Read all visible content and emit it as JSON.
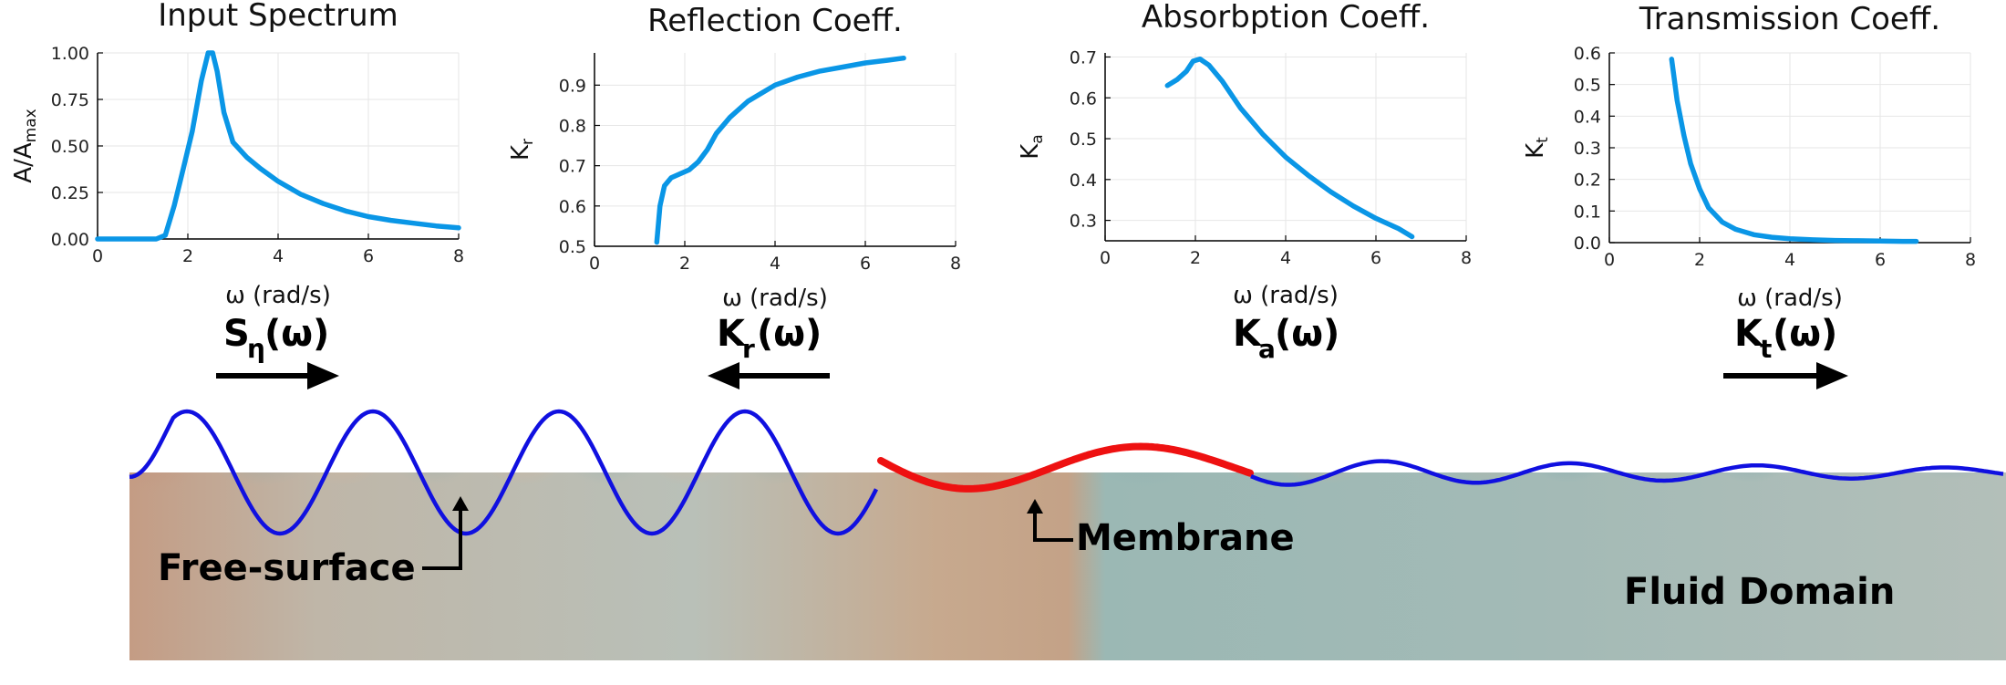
{
  "chart_data": [
    {
      "type": "line",
      "title": "Input Spectrum",
      "xlabel": "ω (rad/s)",
      "ylabel": "A/A",
      "ylabel_sub": "max",
      "xlim": [
        0,
        8
      ],
      "ylim": [
        0,
        1
      ],
      "xticks": [
        "0",
        "2",
        "4",
        "6",
        "8"
      ],
      "yticks": [
        "0.00",
        "0.25",
        "0.50",
        "0.75",
        "1.00"
      ],
      "series": [
        {
          "name": "S",
          "color": "#0a96e6",
          "x": [
            0,
            1.3,
            1.5,
            1.7,
            1.9,
            2.1,
            2.3,
            2.45,
            2.55,
            2.65,
            2.8,
            3.0,
            3.3,
            3.6,
            4.0,
            4.5,
            5.0,
            5.5,
            6.0,
            6.5,
            7.0,
            7.5,
            8.0
          ],
          "y": [
            0,
            0,
            0.02,
            0.18,
            0.38,
            0.58,
            0.85,
            1.0,
            1.0,
            0.9,
            0.68,
            0.52,
            0.44,
            0.38,
            0.31,
            0.24,
            0.19,
            0.15,
            0.12,
            0.1,
            0.085,
            0.07,
            0.06
          ]
        }
      ]
    },
    {
      "type": "line",
      "title": "Reflection Coeff.",
      "xlabel": "ω (rad/s)",
      "ylabel": "K",
      "ylabel_sub": "r",
      "xlim": [
        0,
        8
      ],
      "ylim": [
        0.5,
        0.98
      ],
      "xticks": [
        "0",
        "2",
        "4",
        "6",
        "8"
      ],
      "yticks": [
        "0.5",
        "0.6",
        "0.7",
        "0.8",
        "0.9"
      ],
      "series": [
        {
          "name": "Kr",
          "color": "#0a96e6",
          "x": [
            1.38,
            1.45,
            1.55,
            1.7,
            1.9,
            2.1,
            2.3,
            2.5,
            2.7,
            3.0,
            3.4,
            4.0,
            4.5,
            5.0,
            5.5,
            6.0,
            6.5,
            6.85
          ],
          "y": [
            0.51,
            0.6,
            0.65,
            0.67,
            0.68,
            0.69,
            0.71,
            0.74,
            0.78,
            0.82,
            0.86,
            0.9,
            0.92,
            0.935,
            0.945,
            0.955,
            0.962,
            0.967
          ]
        }
      ]
    },
    {
      "type": "line",
      "title": "Absorbption Coeff.",
      "xlabel": "ω (rad/s)",
      "ylabel": "K",
      "ylabel_sub": "a",
      "xlim": [
        0,
        8
      ],
      "ylim": [
        0.25,
        0.71
      ],
      "xticks": [
        "0",
        "2",
        "4",
        "6",
        "8"
      ],
      "yticks": [
        "0.3",
        "0.4",
        "0.5",
        "0.6",
        "0.7"
      ],
      "series": [
        {
          "name": "Ka",
          "color": "#0a96e6",
          "x": [
            1.38,
            1.6,
            1.8,
            1.95,
            2.1,
            2.3,
            2.6,
            3.0,
            3.5,
            4.0,
            4.5,
            5.0,
            5.5,
            6.0,
            6.5,
            6.8
          ],
          "y": [
            0.63,
            0.645,
            0.665,
            0.69,
            0.695,
            0.68,
            0.64,
            0.575,
            0.51,
            0.455,
            0.41,
            0.37,
            0.335,
            0.305,
            0.28,
            0.26
          ]
        }
      ]
    },
    {
      "type": "line",
      "title": "Transmission Coeff.",
      "xlabel": "ω (rad/s)",
      "ylabel": "K",
      "ylabel_sub": "t",
      "xlim": [
        0,
        8
      ],
      "ylim": [
        0,
        0.6
      ],
      "xticks": [
        "0",
        "2",
        "4",
        "6",
        "8"
      ],
      "yticks": [
        "0.0",
        "0.1",
        "0.2",
        "0.3",
        "0.4",
        "0.5",
        "0.6"
      ],
      "series": [
        {
          "name": "Kt",
          "color": "#0a96e6",
          "x": [
            1.38,
            1.5,
            1.65,
            1.8,
            2.0,
            2.2,
            2.5,
            2.8,
            3.2,
            3.6,
            4.0,
            4.5,
            5.0,
            5.5,
            6.0,
            6.5,
            6.8
          ],
          "y": [
            0.58,
            0.45,
            0.34,
            0.25,
            0.17,
            0.11,
            0.065,
            0.042,
            0.025,
            0.017,
            0.012,
            0.009,
            0.007,
            0.006,
            0.005,
            0.004,
            0.004
          ]
        }
      ]
    }
  ],
  "symbols": [
    {
      "main": "S",
      "sub": "η",
      "rest": "(ω)"
    },
    {
      "main": "K",
      "sub": "r",
      "rest": "(ω)"
    },
    {
      "main": "K",
      "sub": "a",
      "rest": "(ω)"
    },
    {
      "main": "K",
      "sub": "t",
      "rest": "(ω)"
    }
  ],
  "arrows": [
    "right",
    "left",
    "right"
  ],
  "annotations": {
    "free_surface": "Free-surface",
    "membrane": "Membrane",
    "fluid_domain": "Fluid Domain"
  },
  "colors": {
    "curve": "#0a96e6",
    "free_surface_line": "#1010e0",
    "membrane_line": "#ee1111",
    "warm": "#7a1016",
    "cool": "#123a5c",
    "neutral": "#b9c2bd"
  }
}
